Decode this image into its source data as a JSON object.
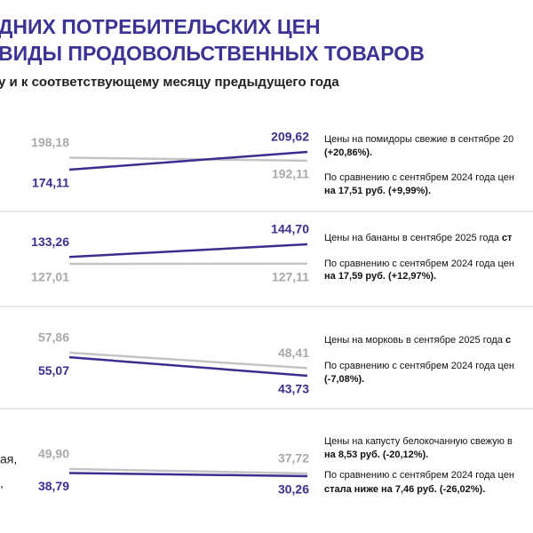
{
  "header": {
    "title_lines": [
      "ДНИХ ПОТРЕБИТЕЛЬСКИХ ЦЕН",
      "ВИДЫ ПРОДОВОЛЬСТВЕННЫХ ТОВАРОВ"
    ],
    "subtitle": "у и к соответствующему месяцу предыдущего года"
  },
  "panels": [
    {
      "series": [
        {
          "color": "#c4c4c4",
          "label_color": "#a9a9a9",
          "values": [
            198.18,
            192.11
          ],
          "value_labels": [
            "198,18",
            "192,11"
          ]
        },
        {
          "color": "#3a2f8f",
          "label_color": "#3a2f8f",
          "values": [
            174.11,
            209.62
          ],
          "value_labels": [
            "174,11",
            "209,62"
          ]
        }
      ],
      "text_lines": [
        [
          {
            "text": "Цены на помидоры свежие в сентябре 20",
            "bold": false
          }
        ],
        [
          {
            "text": "(+20,86%).",
            "bold": true
          }
        ],
        [
          {
            "text": "По сравнению с сентябрем 2024 года цен",
            "bold": false
          }
        ],
        [
          {
            "text": "на 17,51 руб. (+9,99%).",
            "bold": true
          }
        ]
      ]
    },
    {
      "series": [
        {
          "color": "#c4c4c4",
          "label_color": "#a9a9a9",
          "values": [
            127.01,
            127.11
          ],
          "value_labels": [
            "127,01",
            "127,11"
          ]
        },
        {
          "color": "#3a2f8f",
          "label_color": "#3a2f8f",
          "values": [
            133.26,
            144.7
          ],
          "value_labels": [
            "133,26",
            "144,70"
          ]
        }
      ],
      "text_lines": [
        [
          {
            "text": "Цены на бананы в сентябре 2025 года ",
            "bold": false
          },
          {
            "text": "ст",
            "bold": true
          }
        ],
        [
          {
            "text": "По сравнению с сентябрем 2024 года  цен",
            "bold": false
          }
        ],
        [
          {
            "text": "на 17,59 руб. (+12,97%).",
            "bold": true
          }
        ]
      ]
    },
    {
      "series": [
        {
          "color": "#c4c4c4",
          "label_color": "#a9a9a9",
          "values": [
            57.86,
            48.41
          ],
          "value_labels": [
            "57,86",
            "48,41"
          ]
        },
        {
          "color": "#3a2f8f",
          "label_color": "#3a2f8f",
          "values": [
            55.07,
            43.73
          ],
          "value_labels": [
            "55,07",
            "43,73"
          ]
        }
      ],
      "text_lines": [
        [
          {
            "text": "Цены на морковь в сентябре 2025 года ",
            "bold": false
          },
          {
            "text": "с",
            "bold": true
          }
        ],
        [
          {
            "text": "По сравнению с сентябрем 2024 года цен",
            "bold": false
          }
        ],
        [
          {
            "text": "(-7,08%).",
            "bold": true
          }
        ]
      ]
    },
    {
      "series": [
        {
          "color": "#c4c4c4",
          "label_color": "#a9a9a9",
          "values": [
            49.9,
            37.72
          ],
          "value_labels": [
            "49,90",
            "37,72"
          ]
        },
        {
          "color": "#3a2f8f",
          "label_color": "#3a2f8f",
          "values": [
            38.79,
            30.26
          ],
          "value_labels": [
            "38,79",
            "30,26"
          ]
        }
      ],
      "text_lines": [
        [
          {
            "text": "Цены на капусту белокочанную свежую  в",
            "bold": false
          }
        ],
        [
          {
            "text": "на 8,53 руб. (-20,12%).",
            "bold": true
          }
        ],
        [
          {
            "text": "По сравнению с сентябрем 2024 года цен",
            "bold": false
          }
        ],
        [
          {
            "text": "стала ниже на 7,46 руб. (-26,02%).",
            "bold": true
          }
        ]
      ],
      "left_fragments": [
        "ая,",
        ","
      ]
    }
  ]
}
